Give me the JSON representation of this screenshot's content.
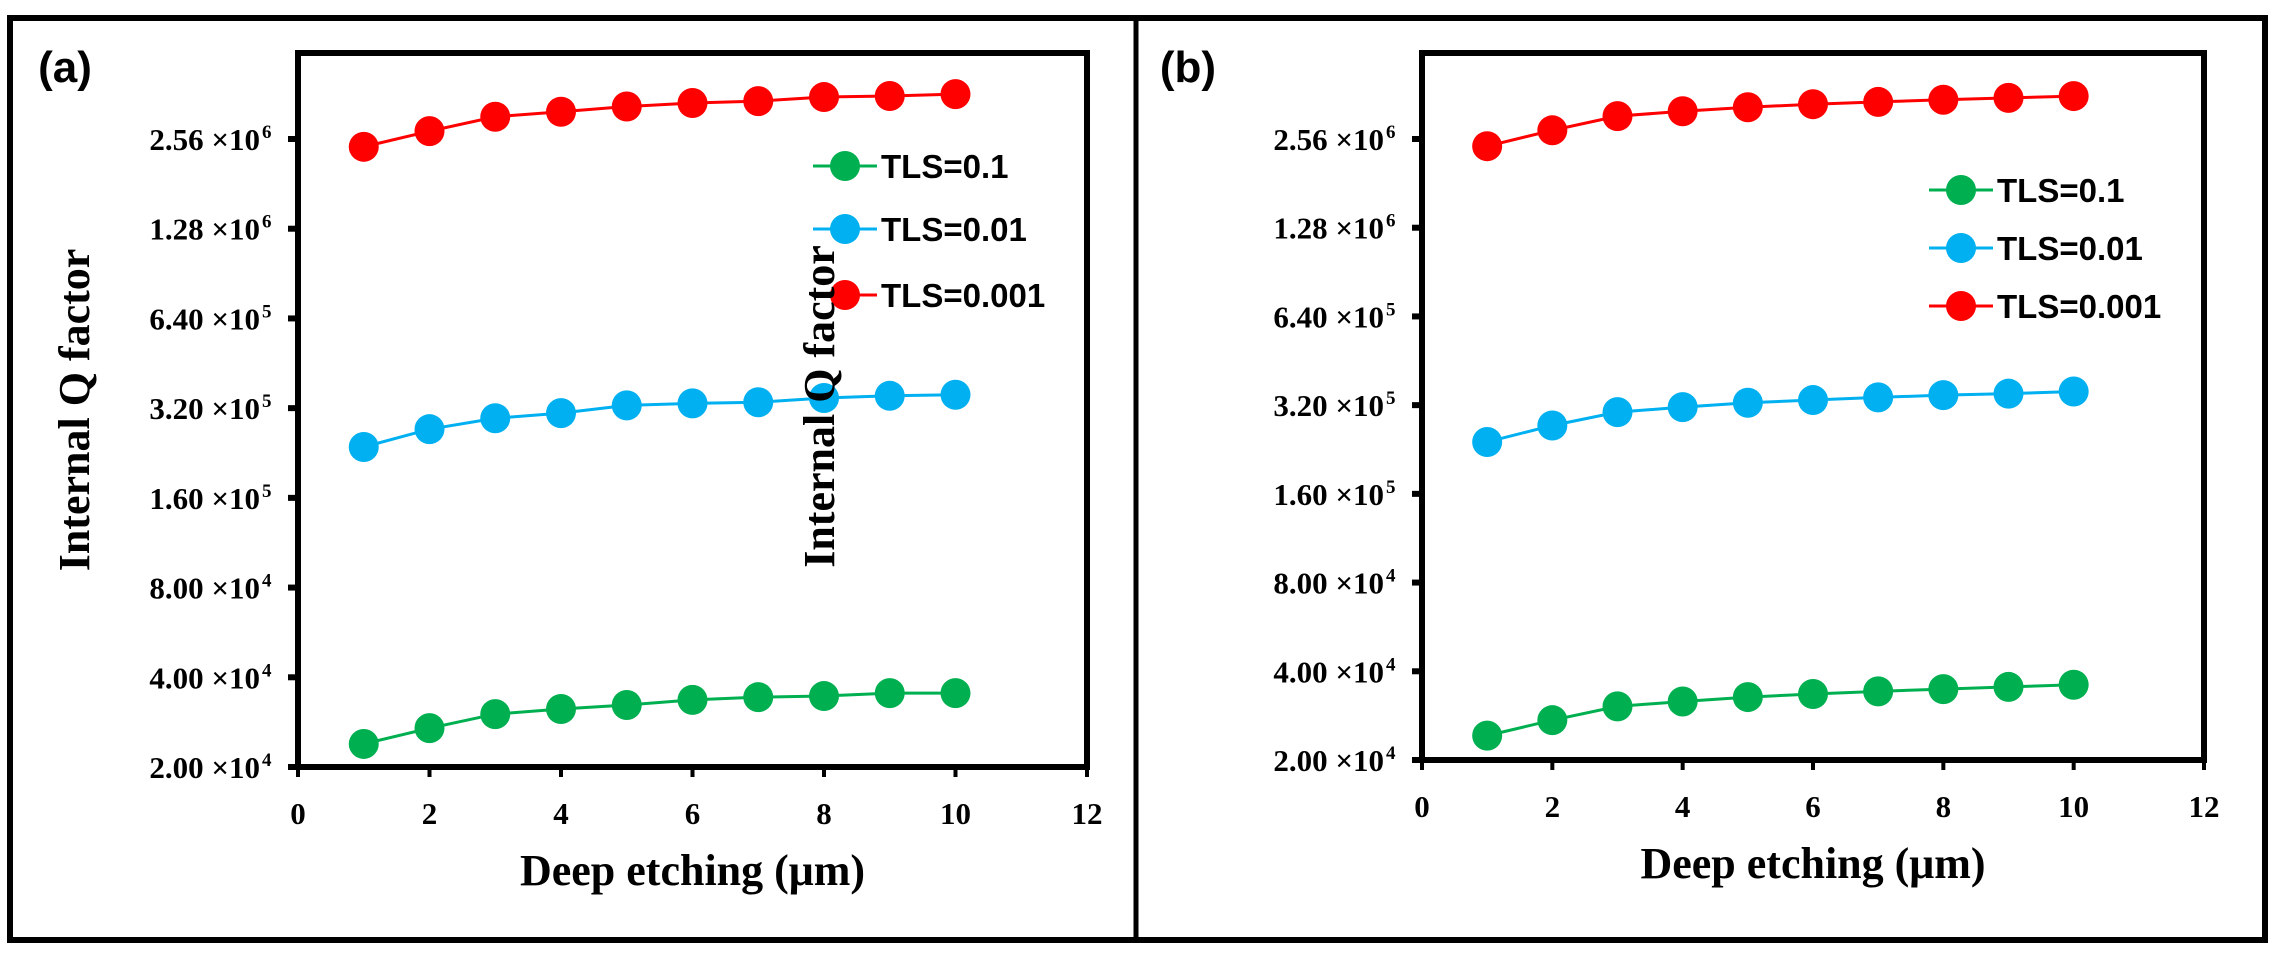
{
  "chart_data": [
    {
      "type": "line",
      "panel_label": "(a)",
      "xlabel": "Deep etching (μm)",
      "ylabel": "Internal Q factor",
      "xlim": [
        0,
        12
      ],
      "xticks": [
        "0",
        "2",
        "4",
        "6",
        "8",
        "10",
        "12"
      ],
      "yscale": "log2",
      "ylim": [
        20000,
        5000000
      ],
      "yticks": [
        {
          "mant": "2.00",
          "exp": "4",
          "value": 20000
        },
        {
          "mant": "4.00",
          "exp": "4",
          "value": 40000
        },
        {
          "mant": "8.00",
          "exp": "4",
          "value": 80000
        },
        {
          "mant": "1.60",
          "exp": "5",
          "value": 160000
        },
        {
          "mant": "3.20",
          "exp": "5",
          "value": 320000
        },
        {
          "mant": "6.40",
          "exp": "5",
          "value": 640000
        },
        {
          "mant": "1.28",
          "exp": "6",
          "value": 1280000
        },
        {
          "mant": "2.56",
          "exp": "6",
          "value": 2560000
        }
      ],
      "legend_position": "top-right",
      "x": [
        1,
        2,
        3,
        4,
        5,
        6,
        7,
        8,
        9,
        10
      ],
      "series": [
        {
          "name": "TLS=0.1",
          "color": "#00b050",
          "values": [
            23900,
            27000,
            30100,
            31300,
            32300,
            33600,
            34300,
            34600,
            35400,
            35400
          ]
        },
        {
          "name": "TLS=0.01",
          "color": "#00b0f0",
          "values": [
            237000,
            272000,
            296000,
            308000,
            327000,
            332000,
            335000,
            346000,
            352000,
            355000
          ]
        },
        {
          "name": "TLS=0.001",
          "color": "#ff0000",
          "values": [
            2410000,
            2720000,
            3040000,
            3160000,
            3290000,
            3380000,
            3430000,
            3540000,
            3570000,
            3620000
          ]
        }
      ]
    },
    {
      "type": "line",
      "panel_label": "(b)",
      "xlabel": "Deep etching (μm)",
      "ylabel": "Internal Q factor",
      "xlim": [
        0,
        12
      ],
      "xticks": [
        "0",
        "2",
        "4",
        "6",
        "8",
        "10",
        "12"
      ],
      "yscale": "log2",
      "ylim": [
        20000,
        5000000
      ],
      "yticks": [
        {
          "mant": "2.00",
          "exp": "4",
          "value": 20000
        },
        {
          "mant": "4.00",
          "exp": "4",
          "value": 40000
        },
        {
          "mant": "8.00",
          "exp": "4",
          "value": 80000
        },
        {
          "mant": "1.60",
          "exp": "5",
          "value": 160000
        },
        {
          "mant": "3.20",
          "exp": "5",
          "value": 320000
        },
        {
          "mant": "6.40",
          "exp": "5",
          "value": 640000
        },
        {
          "mant": "1.28",
          "exp": "6",
          "value": 1280000
        },
        {
          "mant": "2.56",
          "exp": "6",
          "value": 2560000
        }
      ],
      "legend_position": "top-right",
      "x": [
        1,
        2,
        3,
        4,
        5,
        6,
        7,
        8,
        9,
        10
      ],
      "series": [
        {
          "name": "TLS=0.1",
          "color": "#00b050",
          "values": [
            24200,
            27300,
            30400,
            31600,
            32700,
            33500,
            34200,
            34800,
            35400,
            36000
          ]
        },
        {
          "name": "TLS=0.01",
          "color": "#00b0f0",
          "values": [
            240000,
            273000,
            303000,
            315000,
            326000,
            333000,
            340000,
            346000,
            350000,
            356000
          ]
        },
        {
          "name": "TLS=0.001",
          "color": "#ff0000",
          "values": [
            2420000,
            2740000,
            3060000,
            3180000,
            3280000,
            3360000,
            3420000,
            3480000,
            3530000,
            3580000
          ]
        }
      ]
    }
  ]
}
